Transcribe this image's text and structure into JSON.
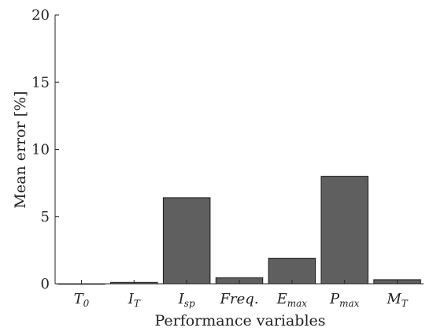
{
  "chart_data": {
    "type": "bar",
    "title": "",
    "xlabel": "Performance variables",
    "ylabel": "Mean error [%]",
    "ylim": [
      0,
      20
    ],
    "yticks": [
      0,
      5,
      10,
      15,
      20
    ],
    "grid": false,
    "categories": [
      {
        "base": "T",
        "sub": "0"
      },
      {
        "base": "I",
        "sub": "T"
      },
      {
        "base": "I",
        "sub": "sp"
      },
      {
        "base": "Freq.",
        "sub": ""
      },
      {
        "base": "E",
        "sub": "max"
      },
      {
        "base": "P",
        "sub": "max"
      },
      {
        "base": "M",
        "sub": "T"
      }
    ],
    "values": [
      0.0,
      0.1,
      6.4,
      0.45,
      1.9,
      8.0,
      0.3
    ],
    "colors": {
      "bar": "#5f5f5f",
      "edge": "#1a1a1a"
    }
  }
}
